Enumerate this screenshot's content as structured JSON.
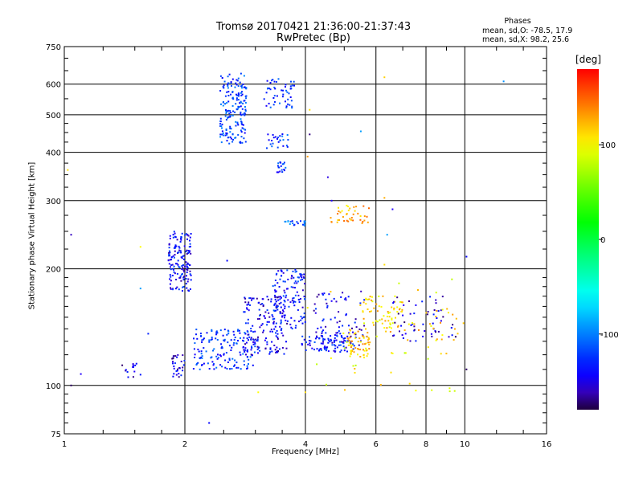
{
  "chart_data": {
    "type": "scatter",
    "title": "Tromsø 20170421 21:36:00-21:37:43",
    "subtitle": "RwPretec (Bp)",
    "xlabel": "Frequency [MHz]",
    "ylabel": "Stationary phase Virtual Height [km]",
    "xscale": "log",
    "yscale": "log",
    "xlim": [
      1,
      16
    ],
    "ylim": [
      75,
      750
    ],
    "x_ticks": [
      1,
      2,
      4,
      6,
      8,
      10,
      16
    ],
    "y_ticks": [
      75,
      100,
      200,
      300,
      400,
      500,
      600,
      750
    ],
    "grid": true,
    "color_by": "phase",
    "colorbar": {
      "label": "[deg]",
      "min": -180,
      "max": 180,
      "ticks": [
        100,
        0,
        -100
      ]
    },
    "phase_stats": {
      "heading": "Phases",
      "o_mode": "mean, sd,O: -78.5, 17.9",
      "x_mode": "mean, sd,X:  98.2, 25.6"
    },
    "clusters": [
      {
        "x": [
          2.45,
          2.85
        ],
        "y": [
          420,
          640
        ],
        "phase": -120,
        "n": 180
      },
      {
        "x": [
          3.15,
          3.75
        ],
        "y": [
          520,
          620
        ],
        "phase": -130,
        "n": 50
      },
      {
        "x": [
          3.2,
          3.65
        ],
        "y": [
          410,
          450
        ],
        "phase": -120,
        "n": 25
      },
      {
        "x": [
          3.4,
          3.6
        ],
        "y": [
          355,
          380
        ],
        "phase": -125,
        "n": 18
      },
      {
        "x": [
          1.82,
          2.08
        ],
        "y": [
          175,
          250
        ],
        "phase": -140,
        "n": 150
      },
      {
        "x": [
          1.85,
          2.0
        ],
        "y": [
          105,
          120
        ],
        "phase": -150,
        "n": 30
      },
      {
        "x": [
          1.35,
          1.55
        ],
        "y": [
          105,
          115
        ],
        "phase": -150,
        "n": 14
      },
      {
        "x": [
          2.1,
          3.0
        ],
        "y": [
          110,
          140
        ],
        "phase": -125,
        "n": 160
      },
      {
        "x": [
          2.8,
          3.6
        ],
        "y": [
          120,
          170
        ],
        "phase": -145,
        "n": 160
      },
      {
        "x": [
          3.3,
          4.0
        ],
        "y": [
          140,
          200
        ],
        "phase": -135,
        "n": 120
      },
      {
        "x": [
          3.5,
          4.0
        ],
        "y": [
          258,
          266
        ],
        "phase": -110,
        "n": 20
      },
      {
        "x": [
          3.9,
          5.3
        ],
        "y": [
          122,
          135
        ],
        "phase": -135,
        "n": 80
      },
      {
        "x": [
          4.2,
          5.7
        ],
        "y": [
          125,
          175
        ],
        "phase": -145,
        "n": 80
      },
      {
        "x": [
          5.1,
          5.8
        ],
        "y": [
          118,
          140
        ],
        "phase": 115,
        "n": 60
      },
      {
        "x": [
          5.5,
          7.0
        ],
        "y": [
          140,
          170
        ],
        "phase": 110,
        "n": 60
      },
      {
        "x": [
          4.6,
          5.8
        ],
        "y": [
          262,
          292
        ],
        "phase": 125,
        "n": 40
      },
      {
        "x": [
          6.5,
          9.5
        ],
        "y": [
          130,
          170
        ],
        "phase": -150,
        "n": 55
      },
      {
        "x": [
          6.5,
          9.5
        ],
        "y": [
          120,
          160
        ],
        "phase": 115,
        "n": 30
      },
      {
        "x": [
          4.0,
          10.0
        ],
        "y": [
          95,
          200
        ],
        "phase": 100,
        "n": 40
      }
    ],
    "outliers": [
      {
        "x": 1.04,
        "y": 100,
        "phase": -175
      },
      {
        "x": 1.04,
        "y": 245,
        "phase": -160
      },
      {
        "x": 1.02,
        "y": 360,
        "phase": 110
      },
      {
        "x": 1.1,
        "y": 107,
        "phase": -150
      },
      {
        "x": 1.55,
        "y": 228,
        "phase": 100
      },
      {
        "x": 1.55,
        "y": 178,
        "phase": -90
      },
      {
        "x": 1.62,
        "y": 136,
        "phase": -130
      },
      {
        "x": 2.3,
        "y": 80,
        "phase": -140
      },
      {
        "x": 2.55,
        "y": 210,
        "phase": -140
      },
      {
        "x": 3.05,
        "y": 96,
        "phase": 100
      },
      {
        "x": 4.1,
        "y": 515,
        "phase": 110
      },
      {
        "x": 4.1,
        "y": 445,
        "phase": -170
      },
      {
        "x": 4.05,
        "y": 390,
        "phase": 130
      },
      {
        "x": 4.55,
        "y": 345,
        "phase": -155
      },
      {
        "x": 4.65,
        "y": 300,
        "phase": -150
      },
      {
        "x": 5.5,
        "y": 453,
        "phase": -90
      },
      {
        "x": 6.3,
        "y": 625,
        "phase": 115
      },
      {
        "x": 6.3,
        "y": 305,
        "phase": 125
      },
      {
        "x": 6.6,
        "y": 285,
        "phase": -150
      },
      {
        "x": 6.4,
        "y": 245,
        "phase": -90
      },
      {
        "x": 6.3,
        "y": 205,
        "phase": 110
      },
      {
        "x": 10.1,
        "y": 215,
        "phase": -140
      },
      {
        "x": 10.1,
        "y": 110,
        "phase": -175
      },
      {
        "x": 12.5,
        "y": 610,
        "phase": -95
      },
      {
        "x": 4.0,
        "y": 96,
        "phase": 110
      }
    ]
  }
}
